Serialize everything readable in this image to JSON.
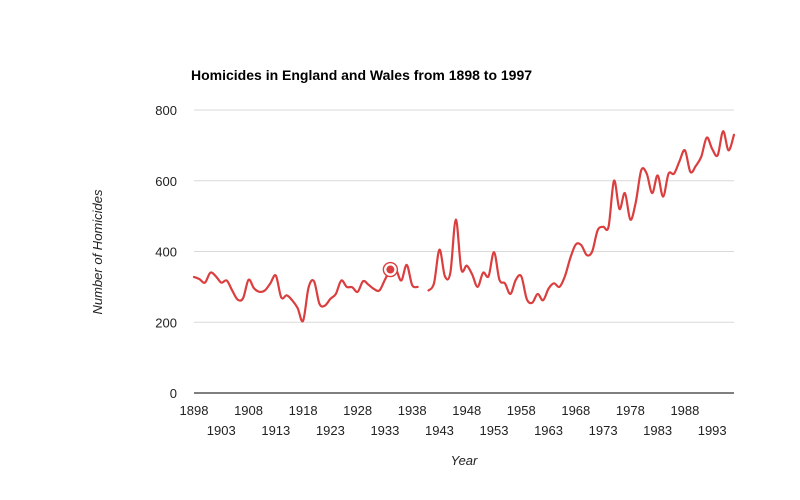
{
  "chart_data": {
    "type": "line",
    "title": "Homicides in England and Wales from 1898 to 1997",
    "xlabel": "Year",
    "ylabel": "Number of Homicides",
    "xlim": [
      1898,
      1997
    ],
    "ylim": [
      0,
      800
    ],
    "grid": true,
    "legend": "none",
    "colors": {
      "line": "#db3e3e",
      "grid": "#d9d9d9",
      "axis": "#333333",
      "text": "#222222"
    },
    "x_ticks_row1": [
      1898,
      1908,
      1918,
      1928,
      1938,
      1948,
      1958,
      1968,
      1978,
      1988
    ],
    "x_ticks_row2": [
      1903,
      1913,
      1923,
      1933,
      1943,
      1953,
      1963,
      1973,
      1983,
      1993
    ],
    "y_ticks": [
      0,
      200,
      400,
      600,
      800
    ],
    "highlight": {
      "x": 1934,
      "y": 349
    },
    "series": [
      {
        "name": "Homicides",
        "x": [
          1898,
          1899,
          1900,
          1901,
          1902,
          1903,
          1904,
          1905,
          1906,
          1907,
          1908,
          1909,
          1910,
          1911,
          1912,
          1913,
          1914,
          1915,
          1916,
          1917,
          1918,
          1919,
          1920,
          1921,
          1922,
          1923,
          1924,
          1925,
          1926,
          1927,
          1928,
          1929,
          1930,
          1931,
          1932,
          1933,
          1934,
          1935,
          1936,
          1937,
          1938,
          1939,
          1940,
          1941,
          1942,
          1943,
          1944,
          1945,
          1946,
          1947,
          1948,
          1949,
          1950,
          1951,
          1952,
          1953,
          1954,
          1955,
          1956,
          1957,
          1958,
          1959,
          1960,
          1961,
          1962,
          1963,
          1964,
          1965,
          1966,
          1967,
          1968,
          1969,
          1970,
          1971,
          1972,
          1973,
          1974,
          1975,
          1976,
          1977,
          1978,
          1979,
          1980,
          1981,
          1982,
          1983,
          1984,
          1985,
          1986,
          1987,
          1988,
          1989,
          1990,
          1991,
          1992,
          1993,
          1994,
          1995,
          1996,
          1997
        ],
        "values": [
          328,
          322,
          312,
          340,
          330,
          312,
          318,
          290,
          264,
          268,
          320,
          296,
          286,
          290,
          310,
          332,
          270,
          276,
          262,
          240,
          204,
          298,
          316,
          252,
          247,
          266,
          280,
          318,
          300,
          299,
          286,
          316,
          306,
          294,
          290,
          320,
          349,
          350,
          318,
          362,
          305,
          300,
          null,
          290,
          310,
          405,
          330,
          340,
          490,
          350,
          360,
          335,
          300,
          340,
          330,
          398,
          320,
          310,
          280,
          320,
          330,
          266,
          255,
          280,
          262,
          295,
          310,
          300,
          330,
          382,
          420,
          418,
          390,
          400,
          460,
          470,
          470,
          600,
          520,
          565,
          490,
          540,
          630,
          620,
          565,
          615,
          555,
          620,
          620,
          655,
          686,
          625,
          642,
          668,
          722,
          690,
          672,
          740,
          686,
          730
        ]
      }
    ]
  }
}
